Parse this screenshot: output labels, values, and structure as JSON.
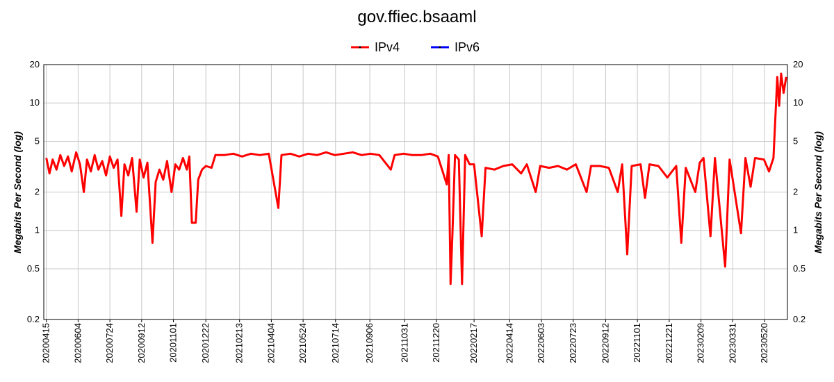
{
  "chart_data": {
    "type": "line",
    "title": "gov.ffiec.bsaaml",
    "y_label": "Megabits Per Second (log)",
    "log_scale": true,
    "grid": true,
    "legend_position": "top",
    "xlim": [
      "20200411",
      "20230625"
    ],
    "xticks": [
      "20200415",
      "20200604",
      "20200724",
      "20200912",
      "20201101",
      "20201222",
      "20210213",
      "20210404",
      "20210524",
      "20210714",
      "20210906",
      "20211031",
      "20211220",
      "20220217",
      "20220414",
      "20220603",
      "20220723",
      "20220912",
      "20221101",
      "20221221",
      "20230209",
      "20230331",
      "20230520"
    ],
    "ylim": [
      0.2,
      20
    ],
    "yticks": [
      0.2,
      0.5,
      1,
      2,
      5,
      10,
      20
    ],
    "x": [
      "20200415",
      "20200420",
      "20200425",
      "20200501",
      "20200507",
      "20200513",
      "20200519",
      "20200525",
      "20200601",
      "20200607",
      "20200613",
      "20200618",
      "20200624",
      "20200630",
      "20200706",
      "20200712",
      "20200718",
      "20200724",
      "20200730",
      "20200805",
      "20200811",
      "20200816",
      "20200822",
      "20200828",
      "20200904",
      "20200909",
      "20200915",
      "20200921",
      "20200929",
      "20201004",
      "20201010",
      "20201016",
      "20201022",
      "20201029",
      "20201104",
      "20201110",
      "20201116",
      "20201122",
      "20201126",
      "20201130",
      "20201206",
      "20201210",
      "20201216",
      "20201222",
      "20201231",
      "20210106",
      "20210120",
      "20210203",
      "20210217",
      "20210303",
      "20210317",
      "20210331",
      "20210415",
      "20210420",
      "20210504",
      "20210518",
      "20210601",
      "20210615",
      "20210629",
      "20210713",
      "20210727",
      "20210810",
      "20210824",
      "20210907",
      "20210921",
      "20211009",
      "20211015",
      "20211029",
      "20211112",
      "20211126",
      "20211210",
      "20211222",
      "20220105",
      "20220108",
      "20220111",
      "20220114",
      "20220118",
      "20220124",
      "20220129",
      "20220203",
      "20220210",
      "20220217",
      "20220301",
      "20220307",
      "20220321",
      "20220404",
      "20220418",
      "20220502",
      "20220511",
      "20220525",
      "20220601",
      "20220615",
      "20220629",
      "20220713",
      "20220727",
      "20220813",
      "20220820",
      "20220903",
      "20220917",
      "20221001",
      "20221008",
      "20221016",
      "20221023",
      "20221106",
      "20221113",
      "20221120",
      "20221204",
      "20221218",
      "20230101",
      "20230109",
      "20230116",
      "20230131",
      "20230207",
      "20230213",
      "20230224",
      "20230303",
      "20230319",
      "20230326",
      "20230413",
      "20230420",
      "20230428",
      "20230505",
      "20230519",
      "20230527",
      "20230603",
      "20230609",
      "20230612",
      "20230615",
      "20230619",
      "20230623"
    ],
    "series": [
      {
        "name": "IPv4",
        "color": "#ff0000",
        "values": [
          3.7,
          2.8,
          3.6,
          3.0,
          3.9,
          3.2,
          3.8,
          2.9,
          4.1,
          3.3,
          2.0,
          3.6,
          2.9,
          3.9,
          3.0,
          3.5,
          2.7,
          3.8,
          3.1,
          3.6,
          1.3,
          3.3,
          2.7,
          3.7,
          1.4,
          3.6,
          2.6,
          3.4,
          0.8,
          2.4,
          3.0,
          2.5,
          3.5,
          2.0,
          3.3,
          3.0,
          3.7,
          3.0,
          3.8,
          1.15,
          1.15,
          2.5,
          3.0,
          3.2,
          3.1,
          3.9,
          3.9,
          4.0,
          3.8,
          4.0,
          3.9,
          4.0,
          1.5,
          3.9,
          4.0,
          3.8,
          4.0,
          3.9,
          4.1,
          3.9,
          4.0,
          4.1,
          3.9,
          4.0,
          3.9,
          3.0,
          3.9,
          4.0,
          3.9,
          3.9,
          4.0,
          3.8,
          2.3,
          3.9,
          0.38,
          0.95,
          3.9,
          3.6,
          0.38,
          3.9,
          3.3,
          3.3,
          0.9,
          3.1,
          3.0,
          3.2,
          3.3,
          2.8,
          3.3,
          2.0,
          3.2,
          3.1,
          3.2,
          3.0,
          3.3,
          2.0,
          3.2,
          3.2,
          3.1,
          2.0,
          3.3,
          0.65,
          3.2,
          3.3,
          1.8,
          3.3,
          3.2,
          2.6,
          3.2,
          0.8,
          3.1,
          2.0,
          3.4,
          3.7,
          0.9,
          3.7,
          0.52,
          3.6,
          0.95,
          3.7,
          2.2,
          3.7,
          3.6,
          2.9,
          3.7,
          16,
          9.5,
          17,
          12,
          16
        ]
      },
      {
        "name": "IPv6",
        "color": "#0000ff",
        "values": [
          null,
          null,
          null,
          null,
          null,
          null,
          null,
          null,
          null,
          null,
          null,
          null,
          null,
          null,
          null,
          null,
          null,
          null,
          null,
          null,
          null,
          null,
          null,
          null,
          null,
          null,
          null,
          null,
          null,
          null,
          null,
          null,
          null,
          null,
          null,
          null,
          null,
          null,
          null,
          null,
          null,
          null,
          null,
          null,
          null,
          null,
          null,
          null,
          null,
          null,
          null,
          null,
          null,
          null,
          null,
          null,
          null,
          null,
          null,
          null,
          null,
          null,
          null,
          null,
          null,
          null,
          null,
          null,
          null,
          null,
          null,
          null,
          null,
          null,
          null,
          null,
          null,
          null,
          null,
          null,
          null,
          null,
          null,
          null,
          null,
          null,
          null,
          null,
          null,
          null,
          null,
          null,
          null,
          null,
          null,
          null,
          null,
          null,
          null,
          null,
          null,
          null,
          null,
          null,
          null,
          null,
          null,
          null,
          null,
          null,
          null,
          null,
          null,
          null,
          null,
          null,
          null,
          null,
          null,
          null,
          null,
          null,
          null,
          null,
          null,
          null,
          null,
          null,
          null,
          null
        ]
      }
    ]
  }
}
